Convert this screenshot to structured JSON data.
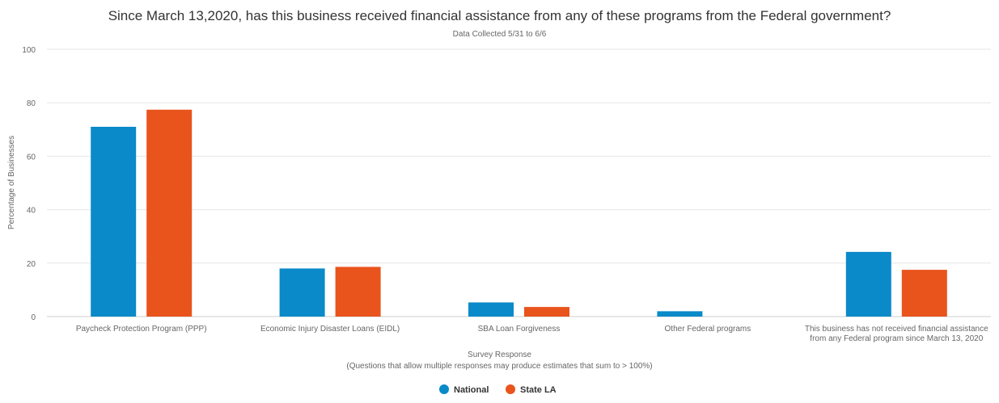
{
  "chart_data": {
    "type": "bar",
    "title": "Since March 13,2020, has this business received financial assistance from any of these programs from the Federal government?",
    "subtitle": "Data Collected 5/31 to 6/6",
    "xlabel": "Survey Response",
    "xlabel_note": "(Questions that allow multiple responses may produce estimates that sum to > 100%)",
    "ylabel": "Percentage of Businesses",
    "ylim": [
      0,
      100
    ],
    "yticks": [
      "0",
      "20",
      "40",
      "60",
      "80",
      "100"
    ],
    "grid": true,
    "legend_position": "bottom-center",
    "categories": [
      [
        "Paycheck Protection Program (PPP)"
      ],
      [
        "Economic Injury Disaster Loans (EIDL)"
      ],
      [
        "SBA Loan Forgiveness"
      ],
      [
        "Other Federal programs"
      ],
      [
        "This business has not received financial assistance",
        "from any Federal program since March 13, 2020"
      ]
    ],
    "series": [
      {
        "name": "National",
        "color": "#0a8ac9",
        "values": [
          71,
          18,
          5.3,
          2,
          24.2
        ]
      },
      {
        "name": "State LA",
        "color": "#e9541d",
        "values": [
          77.4,
          18.6,
          3.6,
          0,
          17.5
        ]
      }
    ]
  }
}
